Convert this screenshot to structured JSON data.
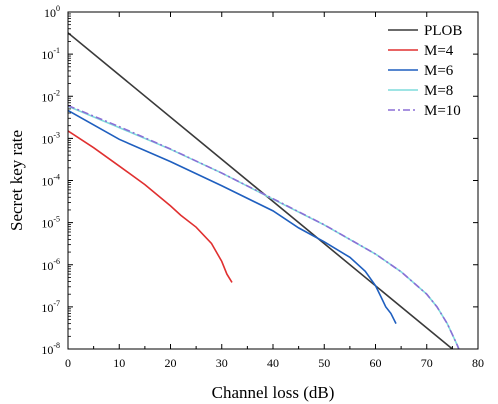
{
  "chart_data": {
    "type": "line",
    "xlabel": "Channel loss (dB)",
    "ylabel": "Secret key rate",
    "xlim": [
      0,
      80
    ],
    "ylim_log10": [
      -8,
      0
    ],
    "yscale": "log",
    "grid": false,
    "legend_position": "top-right",
    "x_ticks": [
      "0",
      "10",
      "20",
      "30",
      "40",
      "50",
      "60",
      "70",
      "80"
    ],
    "y_ticks": [
      {
        "base": "10",
        "exp": "0"
      },
      {
        "base": "10",
        "exp": "-1"
      },
      {
        "base": "10",
        "exp": "-2"
      },
      {
        "base": "10",
        "exp": "-3"
      },
      {
        "base": "10",
        "exp": "-4"
      },
      {
        "base": "10",
        "exp": "-5"
      },
      {
        "base": "10",
        "exp": "-6"
      },
      {
        "base": "10",
        "exp": "-7"
      },
      {
        "base": "10",
        "exp": "-8"
      }
    ],
    "series": [
      {
        "name": "PLOB",
        "color": "#3a3a3a",
        "dash": "solid",
        "x": [
          0,
          75
        ],
        "y": [
          0.32,
          1e-08
        ]
      },
      {
        "name": "M=4",
        "color": "#e03030",
        "dash": "solid",
        "x": [
          0,
          5,
          10,
          15,
          20,
          22,
          25,
          28,
          30,
          31,
          32
        ],
        "y": [
          0.0015,
          0.0006,
          0.00022,
          8e-05,
          2.5e-05,
          1.5e-05,
          7.8e-06,
          3.2e-06,
          1.2e-06,
          6e-07,
          3.8e-07
        ]
      },
      {
        "name": "M=6",
        "color": "#1f5fbf",
        "dash": "solid",
        "x": [
          0,
          10,
          20,
          30,
          40,
          45,
          50,
          55,
          58,
          60,
          61,
          62,
          63,
          64
        ],
        "y": [
          0.0046,
          0.00095,
          0.00028,
          7.5e-05,
          1.9e-05,
          7.5e-06,
          3.5e-06,
          1.5e-06,
          7e-07,
          3.2e-07,
          1.8e-07,
          1e-07,
          7e-08,
          4e-08
        ]
      },
      {
        "name": "M=8",
        "color": "#7fdcdc",
        "dash": "solid",
        "x": [
          0,
          10,
          20,
          30,
          40,
          50,
          60,
          65,
          70,
          72,
          74,
          75,
          76,
          77,
          77.5
        ],
        "y": [
          0.0058,
          0.0018,
          0.00055,
          0.00015,
          3.6e-05,
          8.8e-06,
          1.8e-06,
          6.8e-07,
          2e-07,
          1e-07,
          4e-08,
          2.2e-08,
          1.2e-08,
          6e-09,
          4e-09
        ]
      },
      {
        "name": "M=10",
        "color": "#8b6fd6",
        "dash": "dashdot",
        "x": [
          0,
          10,
          20,
          30,
          40,
          50,
          60,
          65,
          70,
          72,
          74,
          75,
          76,
          77,
          77.5
        ],
        "y": [
          0.006,
          0.0019,
          0.00056,
          0.00015,
          3.7e-05,
          8.9e-06,
          1.8e-06,
          6.8e-07,
          2e-07,
          1e-07,
          4e-08,
          2.2e-08,
          1.2e-08,
          6e-09,
          4e-09
        ]
      }
    ]
  }
}
